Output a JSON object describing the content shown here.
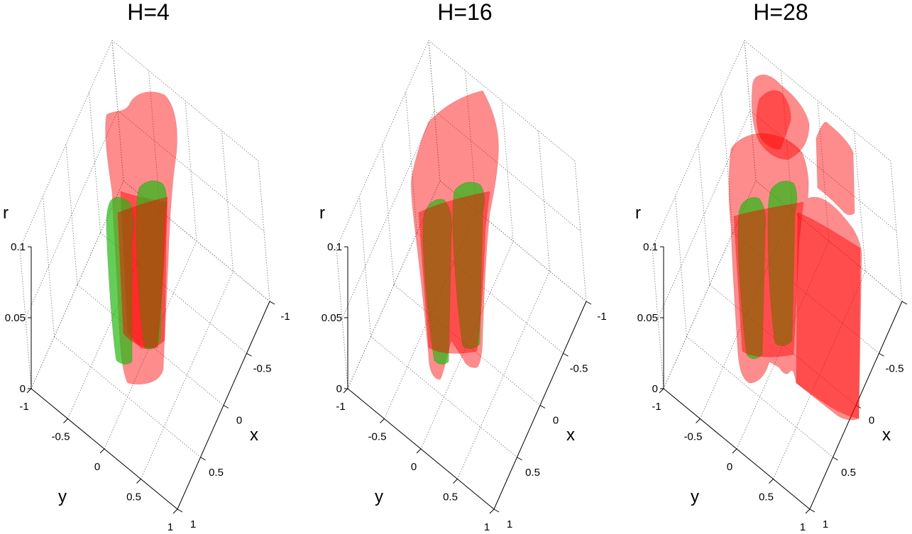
{
  "chart_data": [
    {
      "type": "isosurface-3d",
      "title": "H=4",
      "xlabel": "x",
      "ylabel": "y",
      "zlabel": "r",
      "xticks": [
        "-1",
        "-0.5",
        "0",
        "0.5",
        "1"
      ],
      "yticks": [
        "-1",
        "-0.5",
        "0",
        "0.5",
        "1"
      ],
      "zticks": [
        "0",
        "0.05",
        "0.1"
      ],
      "xlim": [
        -1,
        1
      ],
      "ylim": [
        -1,
        1
      ],
      "zlim": [
        0,
        0.1
      ],
      "grid": true,
      "colors": {
        "red": "#ff0000",
        "green": "#22bb11"
      },
      "surfaces": [
        {
          "color": "red",
          "regions": 1
        },
        {
          "color": "green",
          "regions": 2
        }
      ]
    },
    {
      "type": "isosurface-3d",
      "title": "H=16",
      "xlabel": "x",
      "ylabel": "y",
      "zlabel": "r",
      "xticks": [
        "-1",
        "-0.5",
        "0",
        "0.5",
        "1"
      ],
      "yticks": [
        "-1",
        "-0.5",
        "0",
        "0.5",
        "1"
      ],
      "zticks": [
        "0",
        "0.05",
        "0.1"
      ],
      "xlim": [
        -1,
        1
      ],
      "ylim": [
        -1,
        1
      ],
      "zlim": [
        0,
        0.1
      ],
      "grid": true,
      "colors": {
        "red": "#ff0000",
        "green": "#22bb11"
      },
      "surfaces": [
        {
          "color": "red",
          "regions": 1
        },
        {
          "color": "green",
          "regions": 2
        }
      ]
    },
    {
      "type": "isosurface-3d",
      "title": "H=28",
      "xlabel": "x",
      "ylabel": "y",
      "zlabel": "r",
      "xticks": [
        "-1",
        "-0.5",
        "0",
        "0.5",
        "1"
      ],
      "yticks": [
        "-1",
        "-0.5",
        "0",
        "0.5",
        "1"
      ],
      "zticks": [
        "0",
        "0.05",
        "0.1"
      ],
      "xlim": [
        -1,
        1
      ],
      "ylim": [
        -1,
        1
      ],
      "zlim": [
        0,
        0.1
      ],
      "grid": true,
      "colors": {
        "red": "#ff0000",
        "green": "#22bb11"
      },
      "surfaces": [
        {
          "color": "red",
          "regions": 4
        },
        {
          "color": "green",
          "regions": 2
        }
      ]
    }
  ]
}
